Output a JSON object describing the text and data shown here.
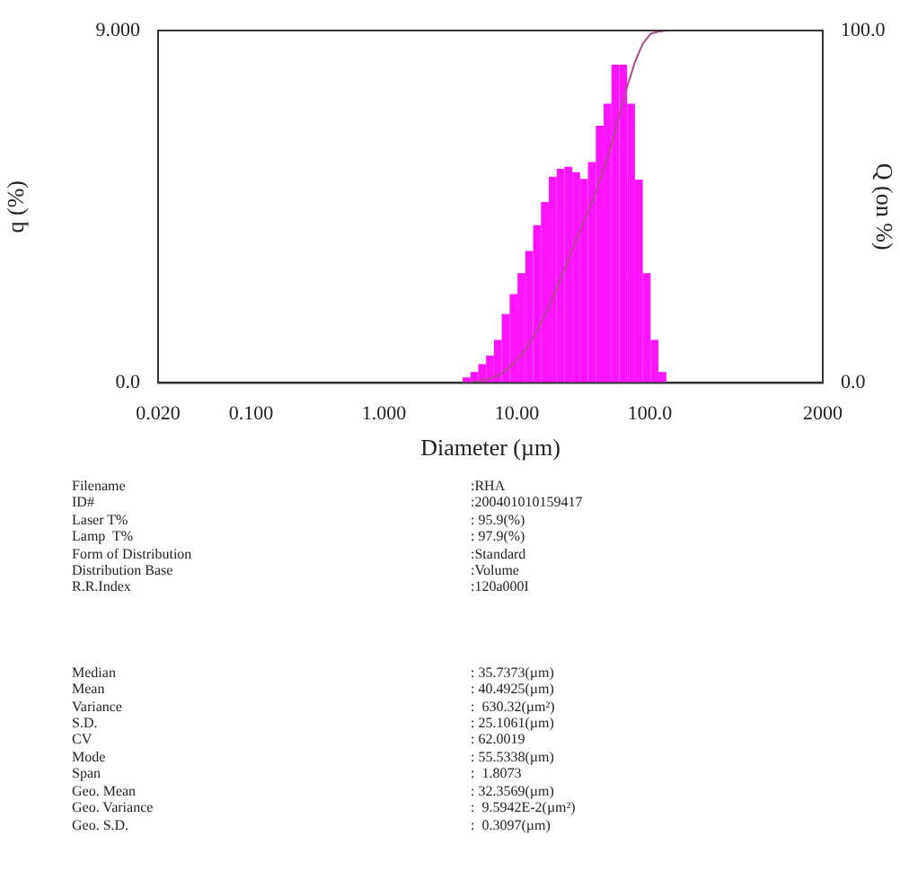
{
  "chart_data": {
    "type": "histogram",
    "xlabel": "Diameter (µm)",
    "ylabel": "q (%)",
    "y2label": "Q (on %)",
    "log": "x",
    "xlim": [
      0.02,
      2000
    ],
    "xticks": [
      {
        "value": 0.02,
        "label": "0.020"
      },
      {
        "value": 0.1,
        "label": "0.100"
      },
      {
        "value": 1,
        "label": "1.000"
      },
      {
        "value": 10,
        "label": "10.00"
      },
      {
        "value": 100,
        "label": "100.0"
      },
      2000
    ],
    "ylim": [
      0,
      9
    ],
    "yticks": [
      {
        "value": 0,
        "label": "0.0"
      },
      {
        "value": 9,
        "label": "9.000"
      }
    ],
    "y2lim": [
      0,
      100
    ],
    "y2ticks": [
      {
        "value": 0,
        "label": "0.0"
      },
      {
        "value": 100,
        "label": "100.0"
      }
    ],
    "grid": false,
    "legend": false,
    "series": [
      {
        "color": "#ff14ff",
        "bins": [
          3.905,
          4.472,
          5.122,
          5.867,
          6.72,
          7.697,
          8.816,
          10.097,
          11.565,
          13.246,
          15.172,
          17.377,
          19.904,
          22.797,
          26.111,
          29.907,
          34.255,
          39.234,
          44.938,
          51.471,
          58.953,
          67.523,
          77.339,
          88.583,
          101.46,
          116.21,
          133.1
        ],
        "values": [
          0.14,
          0.28,
          0.48,
          0.7,
          1.1,
          1.76,
          2.27,
          2.8,
          3.37,
          4.03,
          4.62,
          5.27,
          5.47,
          5.52,
          5.38,
          5.21,
          5.64,
          6.57,
          7.13,
          8.13,
          8.13,
          7.13,
          5.19,
          2.8,
          1.1,
          0.28
        ]
      },
      {
        "type": "line",
        "axis": "y2",
        "color": "#b04a8c",
        "x": [
          4.472,
          5.122,
          5.867,
          6.72,
          7.697,
          8.816,
          10.097,
          11.565,
          13.246,
          15.172,
          17.377,
          19.904,
          22.797,
          26.111,
          29.907,
          34.255,
          39.234,
          44.938,
          51.471,
          58.953,
          67.523,
          77.339,
          88.583,
          101.46,
          116.21,
          133.1
        ],
        "values": [
          0.1,
          0.4,
          0.9,
          1.6,
          2.7,
          4.5,
          6.7,
          9.5,
          12.9,
          16.9,
          21.6,
          26.8,
          32.3,
          37.8,
          43.2,
          48.4,
          54.0,
          60.6,
          67.7,
          75.9,
          84.0,
          91.1,
          96.3,
          99.1,
          99.7,
          100
        ]
      }
    ],
    "annotations": [
      "Filename",
      ":RHA",
      "ID#",
      ":200401010159417",
      "Laser T%",
      ": 95.9(%)",
      "Lamp  T%",
      ": 97.9(%)",
      "Form of Distribution",
      ":Standard",
      "Distribution Base",
      ":Volume",
      "R.R.Index",
      ":120a000I",
      "Median",
      ": 35.7373(µm)",
      "Mean",
      ": 40.4925(µm)",
      "Variance",
      ":  630.32(µm²)",
      "S.D.",
      ": 25.1061(µm)",
      "CV",
      ": 62.0019",
      "Mode",
      ": 55.5338(µm)",
      "Span",
      ":  1.8073",
      "Geo. Mean",
      ": 32.3569(µm)",
      "Geo. Variance",
      ":  9.5942E-2(µm²)",
      "Geo. S.D.",
      ":  0.3097(µm)"
    ]
  }
}
